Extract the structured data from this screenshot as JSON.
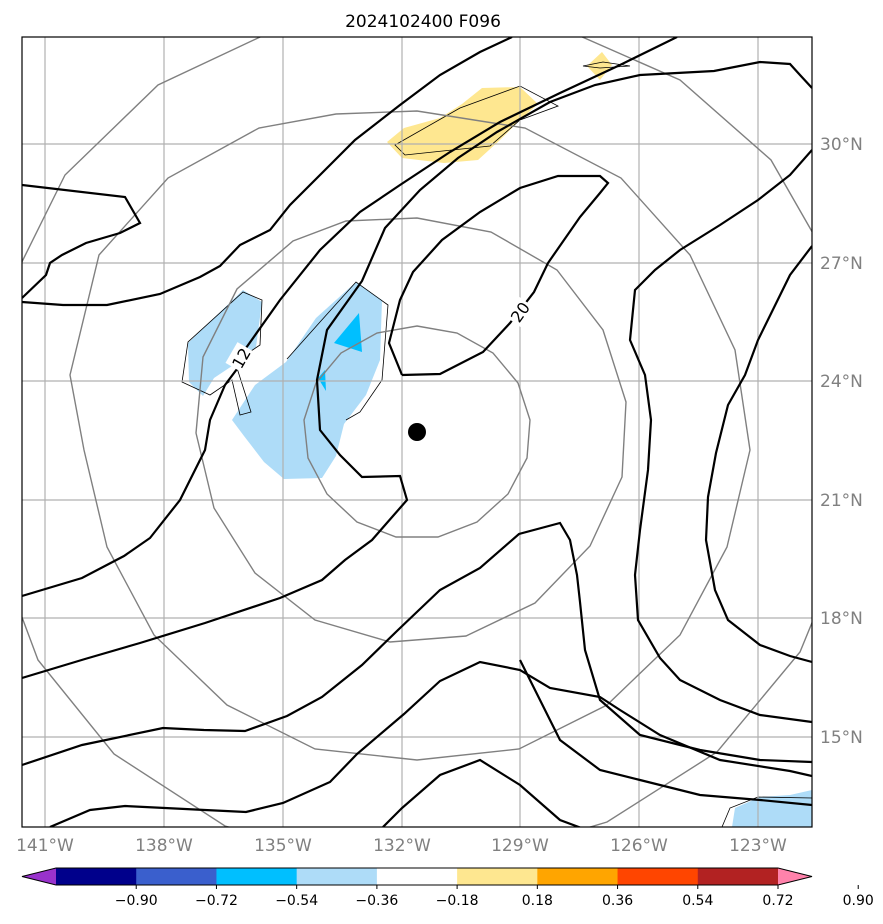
{
  "title": "2024102400 F096",
  "map": {
    "lon_labels": [
      "141°W",
      "138°W",
      "135°W",
      "132°W",
      "129°W",
      "126°W",
      "123°W"
    ],
    "lat_labels": [
      "30°N",
      "27°N",
      "24°N",
      "21°N",
      "18°N",
      "15°N"
    ],
    "contour_labels": [
      "12",
      "20"
    ],
    "center_marker": "storm-center-dot",
    "colors": {
      "contour": "#000000",
      "range_rings": "#808080",
      "gridlines": "#b0b0b0",
      "negative_light": "#aedcf8",
      "negative_medium": "#00bfff",
      "positive_light": "#fee790"
    }
  },
  "colorbar": {
    "tick_labels": [
      "−0.90",
      "−0.72",
      "−0.54",
      "−0.36",
      "−0.18",
      "0.18",
      "0.36",
      "0.54",
      "0.72",
      "0.90"
    ],
    "colors": [
      "#9932cc",
      "#00008b",
      "#3a5fcd",
      "#00bfff",
      "#aedcf8",
      "#ffffff",
      "#fee790",
      "#ffa500",
      "#ff4500",
      "#b22222",
      "#ff82ab"
    ]
  }
}
